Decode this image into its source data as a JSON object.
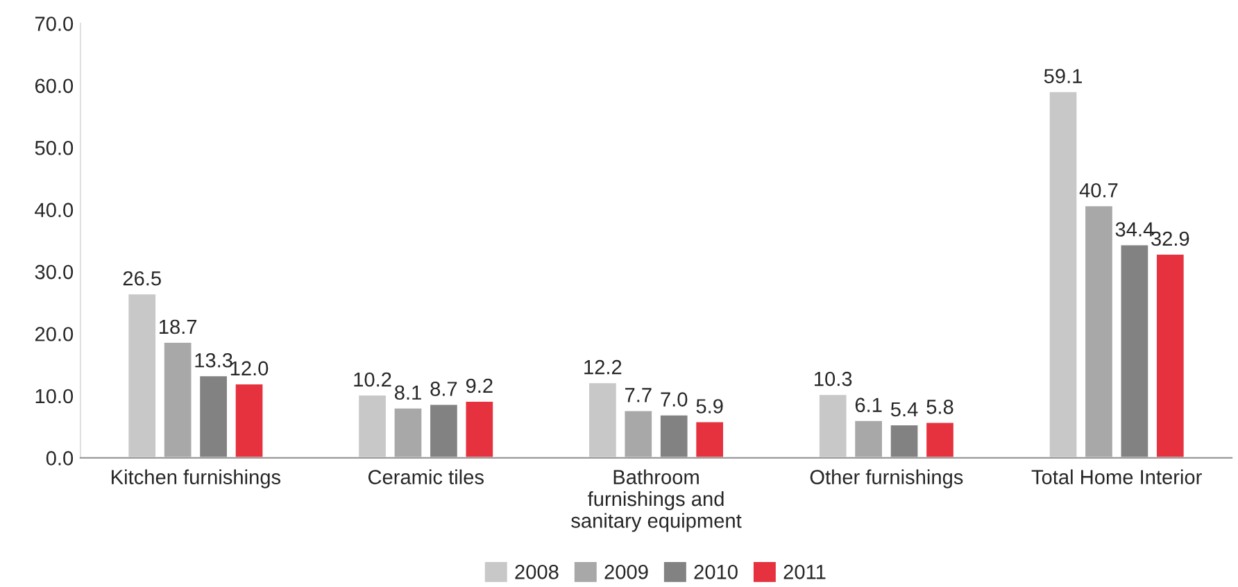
{
  "chart_data": {
    "type": "bar",
    "categories": [
      "Kitchen furnishings",
      "Ceramic tiles",
      "Bathroom\nfurnishings and\nsanitary equipment",
      "Other furnishings",
      "Total Home Interior"
    ],
    "series": [
      {
        "name": "2008",
        "color": "#c8c8c8",
        "values": [
          26.5,
          10.2,
          12.2,
          10.3,
          59.1
        ],
        "value_labels": [
          "26.5",
          "10.2",
          "12.2",
          "10.3",
          "59.1"
        ]
      },
      {
        "name": "2009",
        "color": "#a8a8a8",
        "values": [
          18.7,
          8.1,
          7.7,
          6.1,
          40.7
        ],
        "value_labels": [
          "18.7",
          "8.1",
          "7.7",
          "6.1",
          "40.7"
        ]
      },
      {
        "name": "2010",
        "color": "#828282",
        "values": [
          13.3,
          8.7,
          7.0,
          5.4,
          34.4
        ],
        "value_labels": [
          "13.3",
          "8.7",
          "7.0",
          "5.4",
          "34.4"
        ]
      },
      {
        "name": "2011",
        "color": "#e5323e",
        "values": [
          12.0,
          9.2,
          5.9,
          5.8,
          32.9
        ],
        "value_labels": [
          "12.0",
          "9.2",
          "5.9",
          "5.8",
          "32.9"
        ]
      }
    ],
    "ylim": [
      0,
      70
    ],
    "yticks": [
      {
        "value": 0,
        "label": "0.0"
      },
      {
        "value": 10,
        "label": "10.0"
      },
      {
        "value": 20,
        "label": "20.0"
      },
      {
        "value": 30,
        "label": "30.0"
      },
      {
        "value": 40,
        "label": "40.0"
      },
      {
        "value": 50,
        "label": "50.0"
      },
      {
        "value": 60,
        "label": "60.0"
      },
      {
        "value": 70,
        "label": "70.0"
      }
    ],
    "legend": "bottom"
  }
}
